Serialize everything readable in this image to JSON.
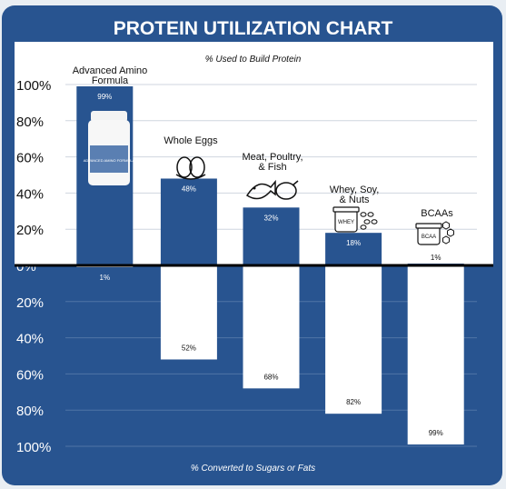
{
  "chart_data": {
    "type": "bar",
    "title": "PROTEIN UTILIZATION CHART",
    "top_axis_label": "% Used to Build Protein",
    "bottom_axis_label": "% Converted to Sugars or Fats",
    "categories": [
      "Advanced Amino Formula",
      "Whole Eggs",
      "Meat, Poultry, & Fish",
      "Whey, Soy, & Nuts",
      "BCAAs"
    ],
    "series": [
      {
        "values": [
          99,
          48,
          32,
          18,
          1
        ]
      },
      {
        "values": [
          1,
          52,
          68,
          82,
          99
        ]
      }
    ],
    "value_labels_up": [
      "99%",
      "48%",
      "32%",
      "18%",
      "1%"
    ],
    "value_labels_down": [
      "1%",
      "52%",
      "68%",
      "82%",
      "99%"
    ],
    "ticks": [
      100,
      80,
      60,
      40,
      20,
      0,
      20,
      40,
      60,
      80,
      100
    ],
    "tick_labels": [
      "100%",
      "80%",
      "60%",
      "40%",
      "20%",
      "0%",
      "20%",
      "40%",
      "60%",
      "80%",
      "100%"
    ],
    "ylim": [
      -100,
      100
    ],
    "grid": true,
    "category_label_lines": [
      [
        "Advanced Amino",
        "Formula"
      ],
      [
        "Whole Eggs"
      ],
      [
        "Meat, Poultry,",
        "& Fish"
      ],
      [
        "Whey, Soy,",
        "& Nuts"
      ],
      [
        "BCAAs"
      ]
    ],
    "icons": [
      "supplement-bottle-icon",
      "eggs-icon",
      "fish-poultry-icon",
      "whey-jar-nuts-icon",
      "bcaa-jar-icon"
    ],
    "bottle_label": "ADVANCED AMINO FORMULA",
    "whey_label": "WHEY",
    "bcaa_label": "BCAA",
    "colors": {
      "navy": "#285490",
      "white": "#ffffff",
      "bar": "#285490",
      "text": "#111111",
      "grid": "#cfd6df"
    }
  }
}
